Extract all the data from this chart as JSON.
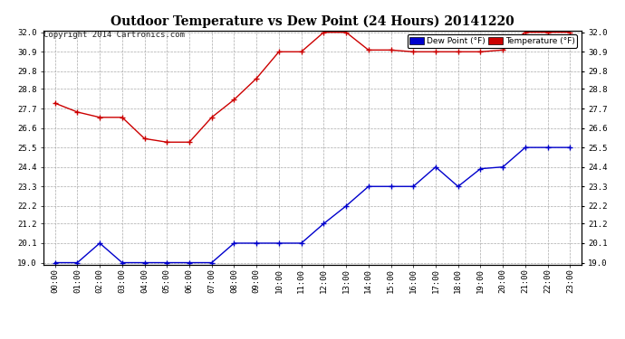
{
  "title": "Outdoor Temperature vs Dew Point (24 Hours) 20141220",
  "copyright": "Copyright 2014 Cartronics.com",
  "hours": [
    "00:00",
    "01:00",
    "02:00",
    "03:00",
    "04:00",
    "05:00",
    "06:00",
    "07:00",
    "08:00",
    "09:00",
    "10:00",
    "11:00",
    "12:00",
    "13:00",
    "14:00",
    "15:00",
    "16:00",
    "17:00",
    "18:00",
    "19:00",
    "20:00",
    "21:00",
    "22:00",
    "23:00"
  ],
  "temperature": [
    28.0,
    27.5,
    27.2,
    27.2,
    26.0,
    25.8,
    25.8,
    27.2,
    28.2,
    29.4,
    30.9,
    30.9,
    32.0,
    32.0,
    31.0,
    31.0,
    30.9,
    30.9,
    30.9,
    30.9,
    31.0,
    32.0,
    32.0,
    32.0
  ],
  "dew_point": [
    19.0,
    19.0,
    20.1,
    19.0,
    19.0,
    19.0,
    19.0,
    19.0,
    20.1,
    20.1,
    20.1,
    20.1,
    21.2,
    22.2,
    23.3,
    23.3,
    23.3,
    24.4,
    23.3,
    24.3,
    24.4,
    25.5,
    25.5,
    25.5
  ],
  "temp_color": "#cc0000",
  "dew_color": "#0000cc",
  "ylim_min": 18.9,
  "ylim_max": 32.1,
  "yticks": [
    19.0,
    20.1,
    21.2,
    22.2,
    23.3,
    24.4,
    25.5,
    26.6,
    27.7,
    28.8,
    29.8,
    30.9,
    32.0
  ],
  "background_color": "#ffffff",
  "grid_color": "#aaaaaa",
  "legend_dew_label": "Dew Point (°F)",
  "legend_temp_label": "Temperature (°F)"
}
